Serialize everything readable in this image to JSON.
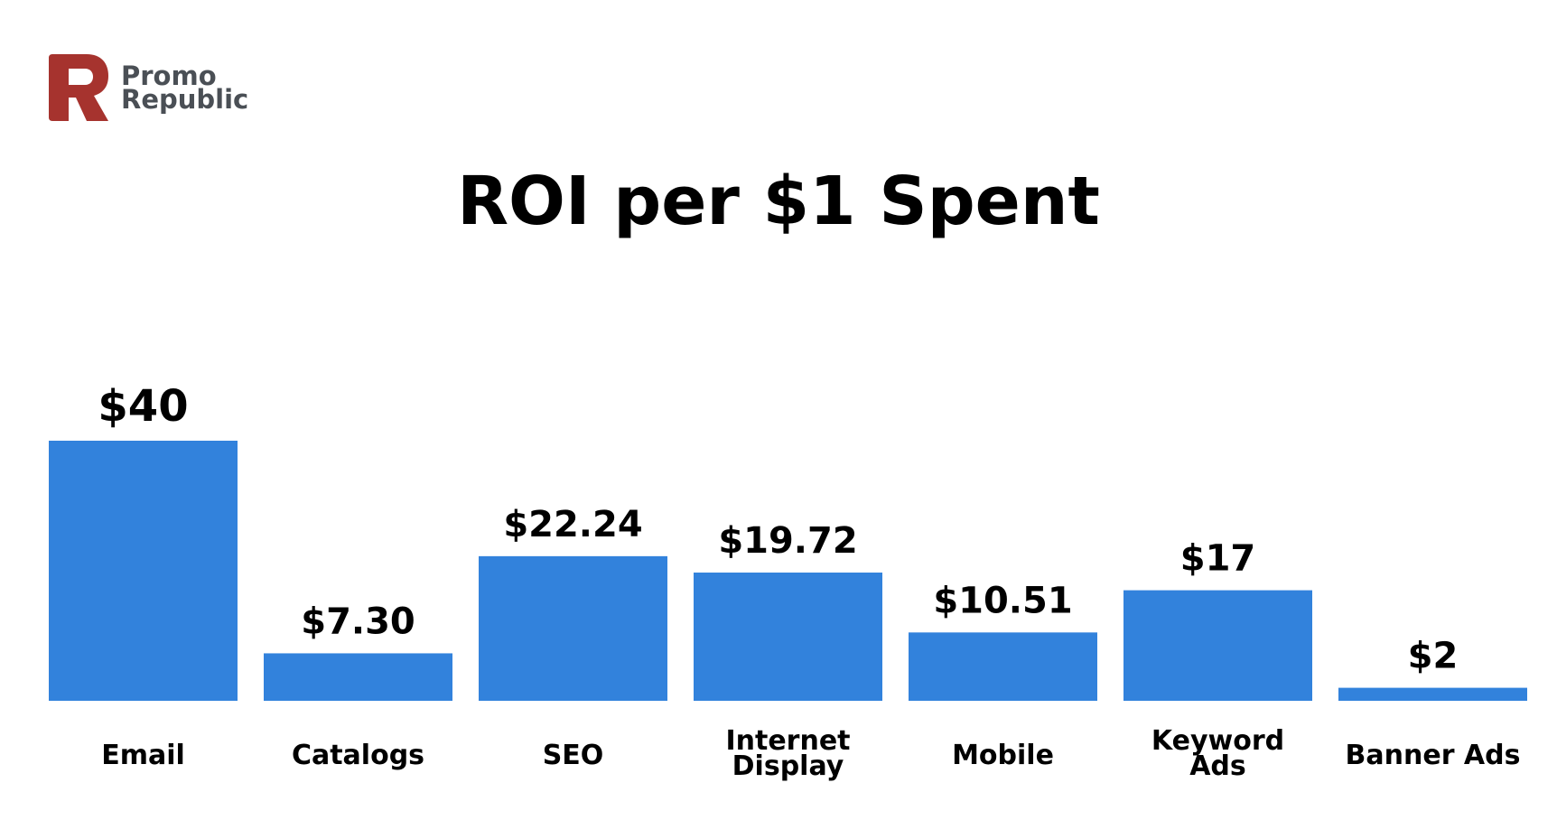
{
  "logo": {
    "line1": "Promo",
    "line2": "Republic",
    "icon": "promorepublic-logo-icon",
    "color": "#a6332e"
  },
  "chart_data": {
    "type": "bar",
    "title": "ROI per $1 Spent",
    "categories": [
      [
        "Email"
      ],
      [
        "Catalogs"
      ],
      [
        "SEO"
      ],
      [
        "Internet",
        "Display"
      ],
      [
        "Mobile"
      ],
      [
        "Keyword",
        "Ads"
      ],
      [
        "Banner Ads"
      ]
    ],
    "values": [
      40,
      7.3,
      22.24,
      19.72,
      10.51,
      17,
      2
    ],
    "data_labels": [
      "$40",
      "$7.30",
      "$22.24",
      "$19.72",
      "$10.51",
      "$17",
      "$2"
    ],
    "xlabel": "",
    "ylabel": "",
    "bar_color": "#3282dc",
    "grid": false,
    "legend": "none"
  }
}
